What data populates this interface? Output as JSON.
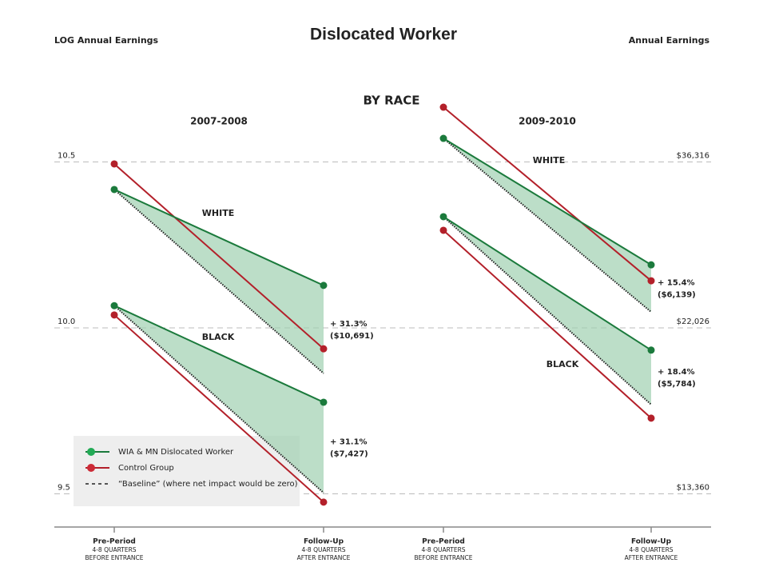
{
  "chart_data": {
    "type": "slope",
    "title": "Dislocated Worker",
    "subtitle": "BY RACE",
    "ylabel": "LOG Annual Earnings",
    "y2label": "Annual Earnings",
    "ylim": [
      9.4,
      10.7
    ],
    "yticks": [
      10.5,
      {
        "value": 10,
        "label": "10.0"
      },
      9.5
    ],
    "y2lim": [
      12088,
      44356
    ],
    "y2scale": "log",
    "y2ticks": [
      {
        "value": 36316,
        "label": "$36,316"
      },
      {
        "value": 22026,
        "label": "$22,026"
      },
      {
        "value": 13360,
        "label": "$13,360"
      }
    ],
    "grid": true,
    "legend": {
      "position": "lower left",
      "entries": [
        {
          "name": "WIA & MN Dislocated Worker",
          "color": "#1b7a3c"
        },
        {
          "name": "Control Group",
          "color": "#b3202a"
        },
        {
          "name": "“Baseline” (where net impact would be zero)",
          "color": "#222222"
        }
      ]
    },
    "panels": [
      {
        "title": "2007-2008",
        "x_labels": [
          {
            "title": "Pre-Period",
            "lines": [
              "4-8 QUARTERS",
              "BEFORE ENTRANCE"
            ]
          },
          {
            "title": "Follow-Up",
            "lines": [
              "4-8 QUARTERS",
              "AFTER ENTRANCE"
            ]
          }
        ],
        "groups": [
          {
            "name": "WHITE",
            "wia": [
              10.417,
              10.128
            ],
            "control": [
              10.494,
              9.937
            ],
            "baseline": [
              10.417,
              9.863
            ],
            "annotation": [
              "+ 31.3%",
              "($10,691)"
            ]
          },
          {
            "name": "BLACK",
            "wia": [
              10.067,
              9.776
            ],
            "control": [
              10.039,
              9.475
            ],
            "baseline": [
              10.067,
              9.503
            ],
            "annotation": [
              "+ 31.1%",
              "($7,427)"
            ]
          }
        ]
      },
      {
        "title": "2009-2010",
        "x_labels": [
          {
            "title": "Pre-Period",
            "lines": [
              "4-8 QUARTERS",
              "BEFORE ENTRANCE"
            ]
          },
          {
            "title": "Follow-Up",
            "lines": [
              "4-8 QUARTERS",
              "AFTER ENTRANCE"
            ]
          }
        ],
        "groups": [
          {
            "name": "WHITE",
            "wia": [
              10.571,
              10.19
            ],
            "control": [
              10.665,
              10.142
            ],
            "baseline": [
              10.571,
              10.048
            ],
            "annotation": [
              "+ 15.4%",
              "($6,139)"
            ]
          },
          {
            "name": "BLACK",
            "wia": [
              10.335,
              9.933
            ],
            "control": [
              10.294,
              9.728
            ],
            "baseline": [
              10.335,
              9.769
            ],
            "annotation": [
              "+ 18.4%",
              "($5,784)"
            ]
          }
        ]
      }
    ]
  }
}
